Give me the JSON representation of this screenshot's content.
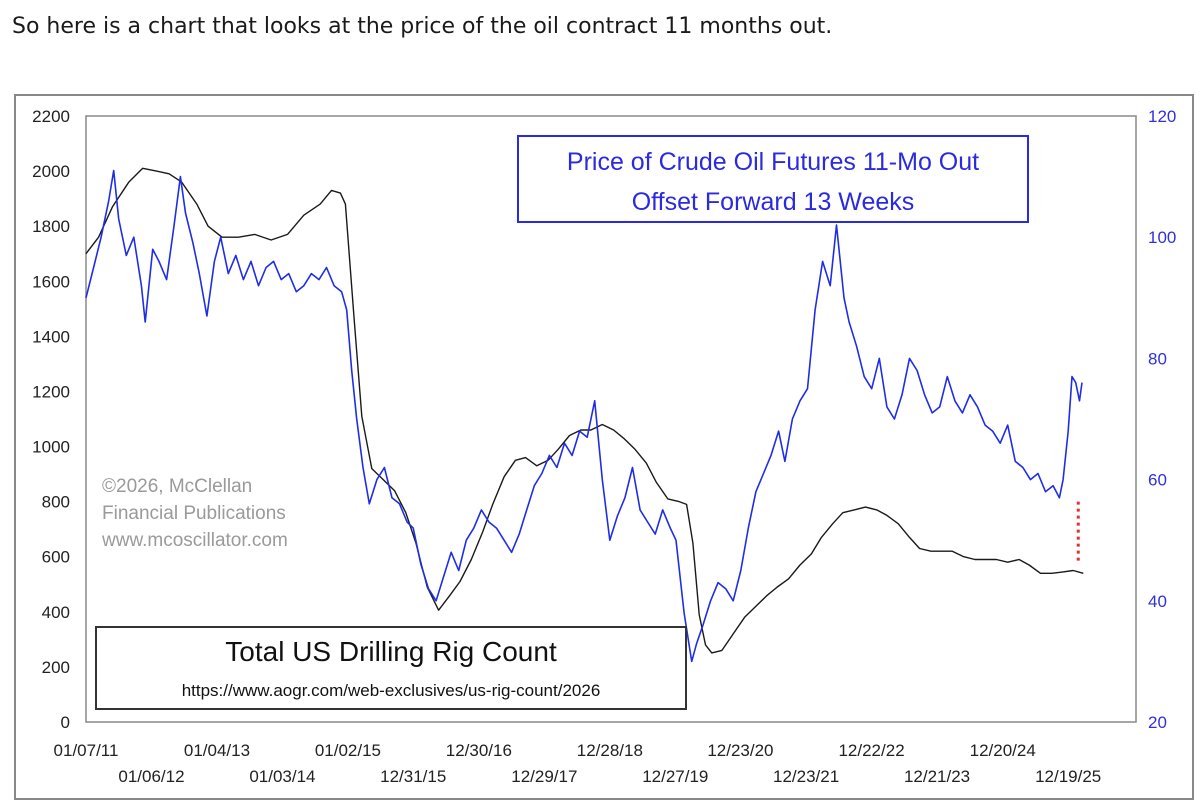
{
  "intro_text": "So here is a chart that looks at the price of the oil contract 11 months out.",
  "chart_data": {
    "type": "line",
    "title": [
      "Price of Crude Oil Futures 11-Mo Out",
      "Offset Forward 13 Weeks"
    ],
    "secondary_title": "Total US Drilling Rig Count",
    "source_url": "https://www.aogr.com/web-exclusives/us-rig-count/2026",
    "watermark": [
      "©2026, McClellan",
      "Financial Publications",
      "www.mcoscillator.com"
    ],
    "y_left": {
      "ylim": [
        0,
        2200
      ],
      "ticks": [
        "0",
        "200",
        "400",
        "600",
        "800",
        "1000",
        "1200",
        "1400",
        "1600",
        "1800",
        "2000",
        "2200"
      ]
    },
    "y_right": {
      "ylim": [
        20,
        120
      ],
      "ticks": [
        "20",
        "40",
        "60",
        "80",
        "100",
        "120"
      ]
    },
    "x_range": [
      "2011-01-07",
      "2026-12-31"
    ],
    "x_ticks_row1": [
      {
        "date": "2011-01-07",
        "label": "01/07/11"
      },
      {
        "date": "2013-01-04",
        "label": "01/04/13"
      },
      {
        "date": "2015-01-02",
        "label": "01/02/15"
      },
      {
        "date": "2016-12-30",
        "label": "12/30/16"
      },
      {
        "date": "2018-12-28",
        "label": "12/28/18"
      },
      {
        "date": "2020-12-23",
        "label": "12/23/20"
      },
      {
        "date": "2022-12-22",
        "label": "12/22/22"
      },
      {
        "date": "2024-12-20",
        "label": "12/20/24"
      }
    ],
    "x_ticks_row2": [
      {
        "date": "2012-01-06",
        "label": "01/06/12"
      },
      {
        "date": "2014-01-03",
        "label": "01/03/14"
      },
      {
        "date": "2015-12-31",
        "label": "12/31/15"
      },
      {
        "date": "2017-12-29",
        "label": "12/29/17"
      },
      {
        "date": "2019-12-27",
        "label": "12/27/19"
      },
      {
        "date": "2021-12-23",
        "label": "12/23/21"
      },
      {
        "date": "2023-12-21",
        "label": "12/21/23"
      },
      {
        "date": "2025-12-19",
        "label": "12/19/25"
      }
    ],
    "series": [
      {
        "name": "Total US Drilling Rig Count",
        "axis": "left",
        "color": "#1a1a1a",
        "points": [
          [
            "2011-01-07",
            1700
          ],
          [
            "2011-03-18",
            1760
          ],
          [
            "2011-06-03",
            1870
          ],
          [
            "2011-09-02",
            1960
          ],
          [
            "2011-11-18",
            2010
          ],
          [
            "2012-02-03",
            2000
          ],
          [
            "2012-04-13",
            1990
          ],
          [
            "2012-06-22",
            1960
          ],
          [
            "2012-09-14",
            1880
          ],
          [
            "2012-11-16",
            1800
          ],
          [
            "2013-02-01",
            1760
          ],
          [
            "2013-05-03",
            1760
          ],
          [
            "2013-08-02",
            1770
          ],
          [
            "2013-11-01",
            1750
          ],
          [
            "2014-01-31",
            1770
          ],
          [
            "2014-05-02",
            1840
          ],
          [
            "2014-08-01",
            1880
          ],
          [
            "2014-10-03",
            1930
          ],
          [
            "2014-11-21",
            1920
          ],
          [
            "2014-12-19",
            1880
          ],
          [
            "2015-02-06",
            1460
          ],
          [
            "2015-03-20",
            1110
          ],
          [
            "2015-05-15",
            920
          ],
          [
            "2015-07-17",
            880
          ],
          [
            "2015-09-18",
            840
          ],
          [
            "2015-11-20",
            760
          ],
          [
            "2016-01-15",
            650
          ],
          [
            "2016-03-18",
            490
          ],
          [
            "2016-05-20",
            406
          ],
          [
            "2016-07-22",
            460
          ],
          [
            "2016-09-16",
            510
          ],
          [
            "2016-11-18",
            590
          ],
          [
            "2017-01-20",
            690
          ],
          [
            "2017-03-17",
            790
          ],
          [
            "2017-05-19",
            890
          ],
          [
            "2017-07-21",
            950
          ],
          [
            "2017-09-15",
            960
          ],
          [
            "2017-11-17",
            930
          ],
          [
            "2018-01-19",
            950
          ],
          [
            "2018-03-16",
            990
          ],
          [
            "2018-05-18",
            1040
          ],
          [
            "2018-07-20",
            1060
          ],
          [
            "2018-09-14",
            1060
          ],
          [
            "2018-11-16",
            1080
          ],
          [
            "2019-01-18",
            1060
          ],
          [
            "2019-03-15",
            1030
          ],
          [
            "2019-05-17",
            990
          ],
          [
            "2019-07-19",
            940
          ],
          [
            "2019-09-13",
            870
          ],
          [
            "2019-11-15",
            810
          ],
          [
            "2020-01-17",
            800
          ],
          [
            "2020-02-28",
            790
          ],
          [
            "2020-04-03",
            650
          ],
          [
            "2020-05-08",
            390
          ],
          [
            "2020-06-12",
            280
          ],
          [
            "2020-07-17",
            251
          ],
          [
            "2020-09-11",
            260
          ],
          [
            "2020-11-13",
            320
          ],
          [
            "2021-01-15",
            380
          ],
          [
            "2021-03-19",
            420
          ],
          [
            "2021-05-21",
            460
          ],
          [
            "2021-07-16",
            490
          ],
          [
            "2021-09-17",
            520
          ],
          [
            "2021-11-19",
            570
          ],
          [
            "2022-01-21",
            610
          ],
          [
            "2022-03-18",
            670
          ],
          [
            "2022-05-20",
            720
          ],
          [
            "2022-07-15",
            760
          ],
          [
            "2022-09-16",
            770
          ],
          [
            "2022-11-18",
            780
          ],
          [
            "2023-01-20",
            770
          ],
          [
            "2023-03-17",
            750
          ],
          [
            "2023-05-19",
            720
          ],
          [
            "2023-07-21",
            670
          ],
          [
            "2023-09-15",
            630
          ],
          [
            "2023-11-17",
            620
          ],
          [
            "2024-01-19",
            620
          ],
          [
            "2024-03-15",
            620
          ],
          [
            "2024-05-17",
            600
          ],
          [
            "2024-07-19",
            590
          ],
          [
            "2024-09-20",
            590
          ],
          [
            "2024-11-15",
            590
          ],
          [
            "2025-01-17",
            580
          ],
          [
            "2025-03-21",
            590
          ],
          [
            "2025-05-16",
            570
          ],
          [
            "2025-07-18",
            540
          ],
          [
            "2025-09-19",
            540
          ],
          [
            "2025-11-21",
            545
          ],
          [
            "2026-01-16",
            550
          ],
          [
            "2026-03-13",
            540
          ]
        ]
      },
      {
        "name": "Price of Crude Oil Futures 11-Mo Out Offset Forward 13 Weeks",
        "axis": "right",
        "color": "#1f2ee6",
        "points": [
          [
            "2011-01-07",
            90
          ],
          [
            "2011-02-18",
            95
          ],
          [
            "2011-04-01",
            100
          ],
          [
            "2011-05-13",
            106
          ],
          [
            "2011-06-10",
            111
          ],
          [
            "2011-07-08",
            103
          ],
          [
            "2011-08-19",
            97
          ],
          [
            "2011-09-30",
            100
          ],
          [
            "2011-11-11",
            92
          ],
          [
            "2011-12-02",
            86
          ],
          [
            "2012-01-13",
            98
          ],
          [
            "2012-02-17",
            96
          ],
          [
            "2012-03-30",
            93
          ],
          [
            "2012-05-11",
            102
          ],
          [
            "2012-06-15",
            110
          ],
          [
            "2012-07-13",
            104
          ],
          [
            "2012-08-24",
            99
          ],
          [
            "2012-09-28",
            94
          ],
          [
            "2012-11-09",
            87
          ],
          [
            "2012-12-21",
            96
          ],
          [
            "2013-01-25",
            100
          ],
          [
            "2013-03-08",
            94
          ],
          [
            "2013-04-19",
            97
          ],
          [
            "2013-05-31",
            93
          ],
          [
            "2013-07-12",
            96
          ],
          [
            "2013-08-23",
            92
          ],
          [
            "2013-10-04",
            95
          ],
          [
            "2013-11-15",
            96
          ],
          [
            "2013-12-27",
            93
          ],
          [
            "2014-02-07",
            94
          ],
          [
            "2014-03-21",
            91
          ],
          [
            "2014-05-02",
            92
          ],
          [
            "2014-06-13",
            94
          ],
          [
            "2014-07-25",
            93
          ],
          [
            "2014-09-05",
            95
          ],
          [
            "2014-10-17",
            92
          ],
          [
            "2014-11-28",
            91
          ],
          [
            "2014-12-26",
            88
          ],
          [
            "2015-01-23",
            78
          ],
          [
            "2015-02-20",
            70
          ],
          [
            "2015-03-27",
            62
          ],
          [
            "2015-05-01",
            56
          ],
          [
            "2015-06-12",
            60
          ],
          [
            "2015-07-24",
            62
          ],
          [
            "2015-09-04",
            57
          ],
          [
            "2015-10-16",
            56
          ],
          [
            "2015-11-27",
            53
          ],
          [
            "2015-12-31",
            52
          ],
          [
            "2016-02-12",
            46
          ],
          [
            "2016-03-25",
            42
          ],
          [
            "2016-05-06",
            40
          ],
          [
            "2016-06-17",
            44
          ],
          [
            "2016-07-29",
            48
          ],
          [
            "2016-09-09",
            45
          ],
          [
            "2016-10-21",
            50
          ],
          [
            "2016-12-02",
            52
          ],
          [
            "2017-01-13",
            55
          ],
          [
            "2017-02-24",
            53
          ],
          [
            "2017-04-07",
            52
          ],
          [
            "2017-05-19",
            50
          ],
          [
            "2017-06-30",
            48
          ],
          [
            "2017-08-11",
            51
          ],
          [
            "2017-09-22",
            55
          ],
          [
            "2017-11-03",
            59
          ],
          [
            "2017-12-15",
            61
          ],
          [
            "2018-01-26",
            64
          ],
          [
            "2018-03-09",
            62
          ],
          [
            "2018-04-20",
            66
          ],
          [
            "2018-06-01",
            64
          ],
          [
            "2018-07-13",
            68
          ],
          [
            "2018-08-24",
            67
          ],
          [
            "2018-10-05",
            73
          ],
          [
            "2018-11-16",
            60
          ],
          [
            "2018-12-28",
            50
          ],
          [
            "2019-02-08",
            54
          ],
          [
            "2019-03-22",
            57
          ],
          [
            "2019-05-03",
            62
          ],
          [
            "2019-06-14",
            55
          ],
          [
            "2019-07-26",
            53
          ],
          [
            "2019-09-06",
            51
          ],
          [
            "2019-10-18",
            55
          ],
          [
            "2019-11-29",
            52
          ],
          [
            "2019-12-31",
            50
          ],
          [
            "2020-02-14",
            38
          ],
          [
            "2020-03-27",
            30
          ],
          [
            "2020-04-24",
            33
          ],
          [
            "2020-05-29",
            36
          ],
          [
            "2020-07-10",
            40
          ],
          [
            "2020-08-21",
            43
          ],
          [
            "2020-10-02",
            42
          ],
          [
            "2020-11-13",
            40
          ],
          [
            "2020-12-25",
            45
          ],
          [
            "2021-02-05",
            52
          ],
          [
            "2021-03-19",
            58
          ],
          [
            "2021-04-30",
            61
          ],
          [
            "2021-06-11",
            64
          ],
          [
            "2021-07-23",
            68
          ],
          [
            "2021-08-27",
            63
          ],
          [
            "2021-10-08",
            70
          ],
          [
            "2021-11-19",
            73
          ],
          [
            "2021-12-31",
            75
          ],
          [
            "2022-02-11",
            88
          ],
          [
            "2022-03-25",
            96
          ],
          [
            "2022-05-06",
            92
          ],
          [
            "2022-06-10",
            102
          ],
          [
            "2022-07-22",
            90
          ],
          [
            "2022-08-19",
            86
          ],
          [
            "2022-09-30",
            82
          ],
          [
            "2022-11-11",
            77
          ],
          [
            "2022-12-23",
            75
          ],
          [
            "2023-02-03",
            80
          ],
          [
            "2023-03-17",
            72
          ],
          [
            "2023-04-28",
            70
          ],
          [
            "2023-06-09",
            74
          ],
          [
            "2023-07-21",
            80
          ],
          [
            "2023-09-01",
            78
          ],
          [
            "2023-10-13",
            74
          ],
          [
            "2023-11-24",
            71
          ],
          [
            "2024-01-05",
            72
          ],
          [
            "2024-02-16",
            77
          ],
          [
            "2024-03-29",
            73
          ],
          [
            "2024-05-10",
            71
          ],
          [
            "2024-06-21",
            74
          ],
          [
            "2024-08-02",
            72
          ],
          [
            "2024-09-13",
            69
          ],
          [
            "2024-10-25",
            68
          ],
          [
            "2024-12-06",
            66
          ],
          [
            "2025-01-17",
            69
          ],
          [
            "2025-02-28",
            63
          ],
          [
            "2025-04-11",
            62
          ],
          [
            "2025-05-23",
            60
          ],
          [
            "2025-07-04",
            61
          ],
          [
            "2025-08-15",
            58
          ],
          [
            "2025-09-26",
            59
          ],
          [
            "2025-10-31",
            57
          ],
          [
            "2025-11-21",
            60
          ],
          [
            "2025-12-19",
            68
          ],
          [
            "2026-01-09",
            77
          ],
          [
            "2026-01-30",
            76
          ],
          [
            "2026-02-20",
            73
          ],
          [
            "2026-03-06",
            76
          ]
        ]
      }
    ],
    "annotation": {
      "type": "dotted-vertical-line",
      "color": "#e03030",
      "date": "2026-02-13",
      "from_left_value": 800,
      "to_left_value": 580
    }
  }
}
